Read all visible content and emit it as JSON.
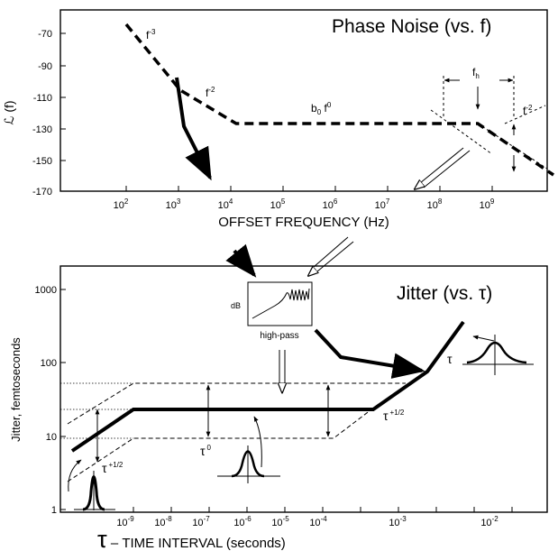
{
  "chart_data": [
    {
      "type": "line",
      "title": "Phase Noise (vs. f)",
      "ylabel": "ℒ (f)",
      "xlabel": "OFFSET FREQUENCY (Hz)",
      "y_ticks": [
        "-70",
        "-90",
        "-110",
        "-130",
        "-150",
        "-170"
      ],
      "x_ticks": [
        {
          "base": "10",
          "exp": "2"
        },
        {
          "base": "10",
          "exp": "3"
        },
        {
          "base": "10",
          "exp": "4"
        },
        {
          "base": "10",
          "exp": "5"
        },
        {
          "base": "10",
          "exp": "6"
        },
        {
          "base": "10",
          "exp": "7"
        },
        {
          "base": "10",
          "exp": "8"
        },
        {
          "base": "10",
          "exp": "9"
        }
      ],
      "annotations": {
        "f_m3": {
          "base": "f",
          "exp": "-3"
        },
        "f_m2a": {
          "base": "f",
          "exp": "-2"
        },
        "b0f0": {
          "base": "b",
          "sub": "0",
          "mid": " f",
          "exp": "0"
        },
        "fh": {
          "base": "f",
          "sub": "h"
        },
        "f_m2b": {
          "base": "f",
          "exp": "-2"
        }
      }
    },
    {
      "type": "line",
      "title": "Jitter  (vs. τ)",
      "ylabel": "Jitter, femtoseconds",
      "xlabel_tau": "τ",
      "xlabel": " – TIME INTERVAL (seconds)",
      "y_ticks": [
        "1000",
        "100",
        "10",
        "1"
      ],
      "x_ticks": [
        {
          "base": "10",
          "exp": "-9"
        },
        {
          "base": "10",
          "exp": "-8"
        },
        {
          "base": "10",
          "exp": "-7"
        },
        {
          "base": "10",
          "exp": "-6"
        },
        {
          "base": "10",
          "exp": "-5"
        },
        {
          "base": "10",
          "exp": "-4"
        },
        {
          "base": "10",
          "exp": "-3"
        },
        {
          "base": "10",
          "exp": "-2"
        }
      ],
      "annotations": {
        "tau_half_left": {
          "base": "τ",
          "exp": "+1/2"
        },
        "tau_half_right": {
          "base": "τ",
          "exp": "+1/2"
        },
        "tau0": {
          "base": "τ",
          "exp": "0"
        },
        "tau_right": "τ"
      },
      "inset": {
        "ylabel": "dB",
        "caption": "high-pass"
      }
    }
  ]
}
